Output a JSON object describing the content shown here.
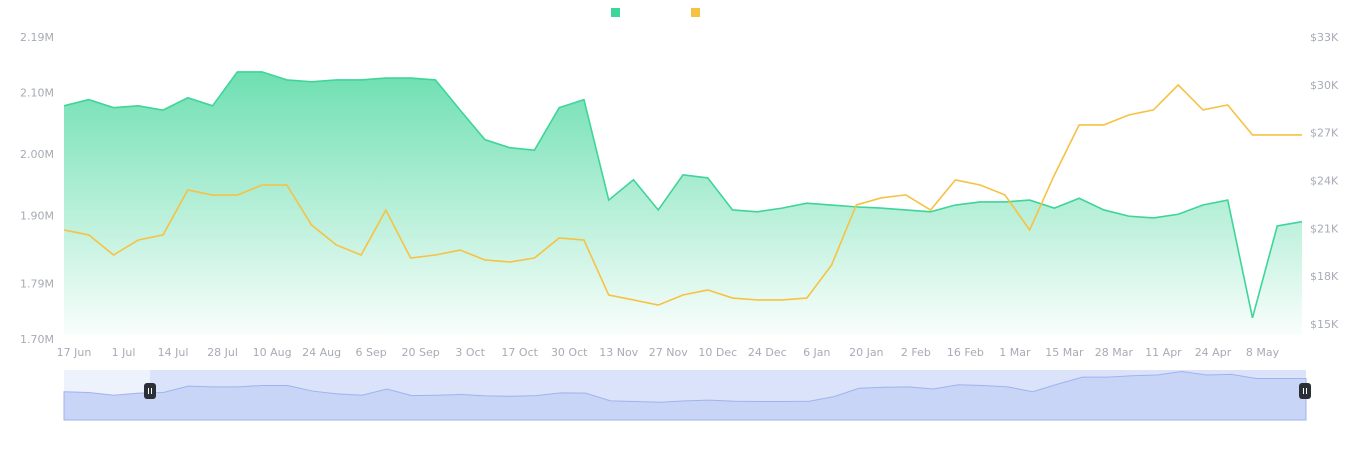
{
  "chart_data": {
    "type": "line",
    "categories": [
      "17 Jun",
      null,
      "1 Jul",
      null,
      "14 Jul",
      null,
      "28 Jul",
      null,
      "10 Aug",
      null,
      "24 Aug",
      null,
      "6 Sep",
      null,
      "20 Sep",
      null,
      "3 Oct",
      null,
      "17 Oct",
      null,
      "30 Oct",
      null,
      "13 Nov",
      null,
      "27 Nov",
      null,
      "10 Dec",
      null,
      "24 Dec",
      null,
      "6 Jan",
      null,
      "20 Jan",
      null,
      "2 Feb",
      null,
      "16 Feb",
      null,
      "1 Mar",
      null,
      "15 Mar",
      null,
      "28 Mar",
      null,
      "11 Apr",
      null,
      "24 Apr",
      null,
      "8 May",
      null,
      null
    ],
    "series": [
      {
        "color": "#3ed598",
        "fill": "area",
        "values": [
          2080000,
          2090000,
          2077000,
          2080000,
          2073000,
          2093000,
          2080000,
          2135000,
          2135000,
          2122000,
          2119000,
          2122000,
          2122000,
          2125000,
          2125000,
          2122000,
          2073000,
          2025000,
          2012000,
          2008000,
          2077000,
          2090000,
          1927000,
          1960000,
          1911000,
          1968000,
          1963000,
          1911000,
          1908000,
          1914000,
          1922000,
          1919000,
          1916000,
          1914000,
          1911000,
          1908000,
          1919000,
          1924000,
          1924000,
          1927000,
          1914000,
          1930000,
          1911000,
          1901000,
          1898000,
          1904000,
          1919000,
          1927000,
          1736000,
          1885000,
          1892000
        ]
      },
      {
        "color": "#f6c244",
        "axis": "y2",
        "values": [
          20960,
          20650,
          19390,
          20330,
          20650,
          23470,
          23150,
          23150,
          23780,
          23780,
          21270,
          20020,
          19390,
          22210,
          19200,
          19390,
          19700,
          19080,
          18950,
          19200,
          20460,
          20330,
          16880,
          16570,
          16250,
          16880,
          17200,
          16690,
          16570,
          16570,
          16690,
          18760,
          22530,
          22970,
          23160,
          22210,
          24100,
          23780,
          23160,
          20960,
          24410,
          27550,
          27550,
          28170,
          28490,
          30060,
          28490,
          28800,
          26920,
          26920,
          26920
        ]
      }
    ],
    "ylim": [
      1700000,
      2190000
    ],
    "yticks": [
      {
        "value": 1700000,
        "label": "1.70M"
      },
      {
        "value": 1790000,
        "label": "1.79M"
      },
      {
        "value": 1900000,
        "label": "1.90M"
      },
      {
        "value": 2000000,
        "label": "2.00M"
      },
      {
        "value": 2100000,
        "label": "2.10M"
      },
      {
        "value": 2190000,
        "label": "2.19M"
      }
    ],
    "y2lim": [
      15000,
      33000
    ],
    "y2ticks": [
      {
        "value": 15000,
        "label": "$15K"
      },
      {
        "value": 18000,
        "label": "$18K"
      },
      {
        "value": 21000,
        "label": "$21K"
      },
      {
        "value": 24000,
        "label": "$24K"
      },
      {
        "value": 27000,
        "label": "$27K"
      },
      {
        "value": 30000,
        "label": "$30K"
      },
      {
        "value": 33000,
        "label": "$33K"
      }
    ]
  }
}
